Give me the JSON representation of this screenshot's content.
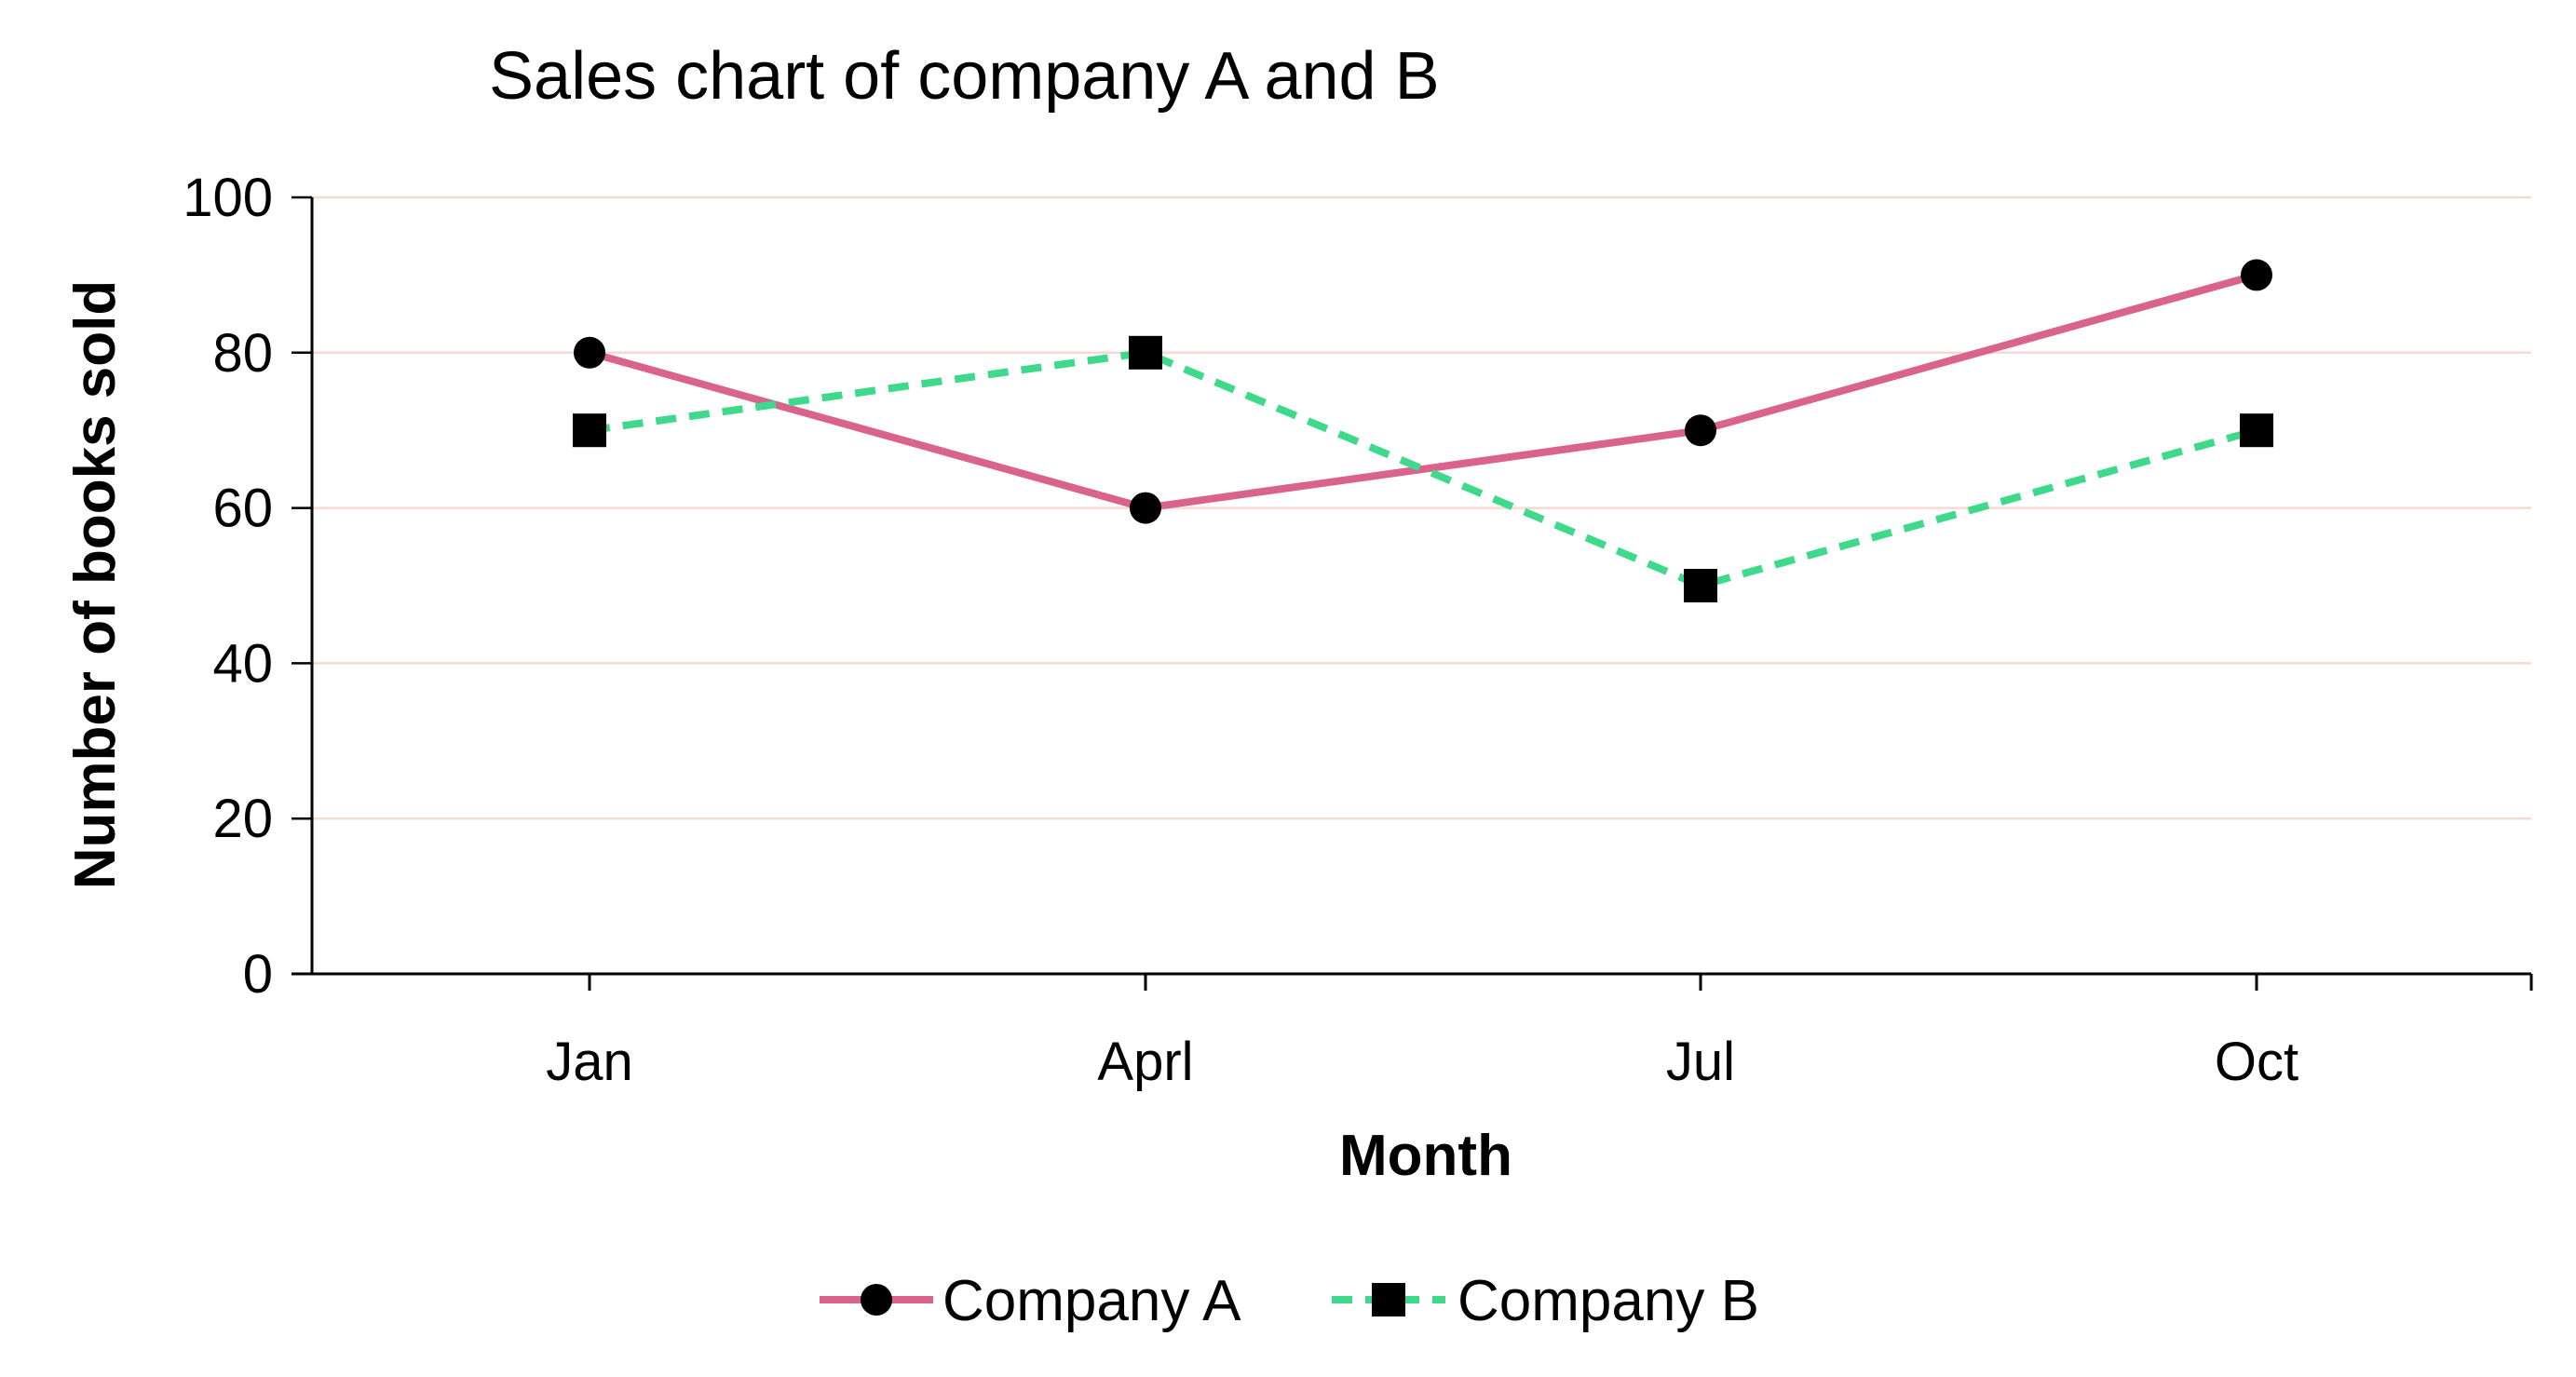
{
  "chart_data": {
    "type": "line",
    "title": "Sales chart of company A and B",
    "xlabel": "Month",
    "ylabel": "Number of books sold",
    "categories": [
      "Jan",
      "Aprl",
      "Jul",
      "Oct"
    ],
    "ylim": [
      0,
      100
    ],
    "yticks": [
      0,
      20,
      40,
      60,
      80,
      100
    ],
    "grid": true,
    "legend_position": "bottom",
    "series": [
      {
        "name": "Company A",
        "values": [
          80,
          60,
          70,
          90
        ],
        "color": "#d9638a",
        "line_style": "solid",
        "marker": "circle"
      },
      {
        "name": "Company B",
        "values": [
          70,
          80,
          50,
          70
        ],
        "color": "#3fd98c",
        "line_style": "dashed",
        "marker": "square"
      }
    ],
    "grid_color": "#f6d9d2",
    "marker_color": "#000000"
  }
}
